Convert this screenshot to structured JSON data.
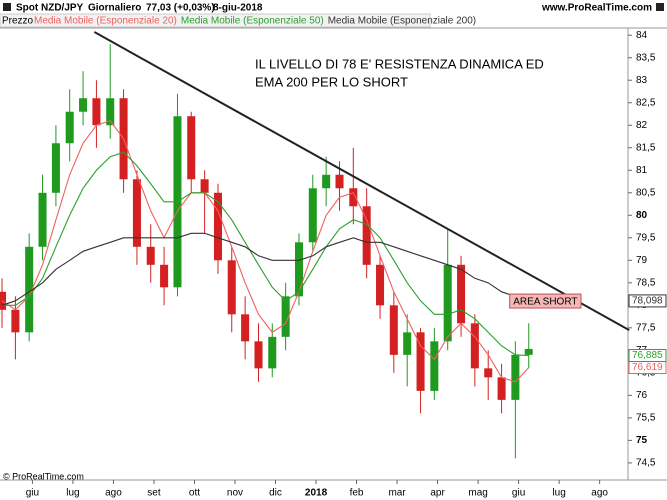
{
  "chart_data": {
    "type": "candlestick",
    "header": {
      "instrument": "Spot NZD/JPY",
      "period": "Giornaliero",
      "last": "77,03 (+0,03%)",
      "date": "8-giu-2018",
      "site": "www.ProRealTime.com"
    },
    "price_label": "Prezzo",
    "copyright": "© ProRealTime.com",
    "annotation": {
      "lines": [
        "IL LIVELLO DI 78 E' RESISTENZA DINAMICA ED",
        "EMA 200 PER LO SHORT"
      ]
    },
    "zone": {
      "label": "AREA SHORT",
      "x": [
        11.78,
        13.54
      ],
      "y": [
        77.94,
        78.25
      ],
      "color": "#f4b6b6"
    },
    "trendline": {
      "x": [
        1.53,
        14.73
      ],
      "y": [
        84.07,
        77.45
      ],
      "color": "#222222"
    },
    "x": [
      -0.75,
      -0.42,
      -0.08,
      0.25,
      0.58,
      0.92,
      1.25,
      1.58,
      1.92,
      2.25,
      2.58,
      2.92,
      3.25,
      3.58,
      3.92,
      4.25,
      4.58,
      4.92,
      5.25,
      5.58,
      5.92,
      6.25,
      6.58,
      6.92,
      7.25,
      7.58,
      7.92,
      8.25,
      8.58,
      8.92,
      9.25,
      9.58,
      9.92,
      10.25,
      10.58,
      10.92,
      11.25,
      11.58,
      11.92,
      12.25
    ],
    "candles": {
      "up_color": "#1f9a1f",
      "down_color": "#d42020",
      "open": [
        78.3,
        77.9,
        77.4,
        79.3,
        80.5,
        81.6,
        82.3,
        82.6,
        82.0,
        82.6,
        80.8,
        79.3,
        78.9,
        78.4,
        82.2,
        80.8,
        80.5,
        79.0,
        77.8,
        77.2,
        76.6,
        77.3,
        78.2,
        79.4,
        80.6,
        80.9,
        80.6,
        80.2,
        78.9,
        78.0,
        76.9,
        77.4,
        76.1,
        77.2,
        78.9,
        77.6,
        76.6,
        76.4,
        75.9,
        76.9
      ],
      "high": [
        78.6,
        78.2,
        79.6,
        80.9,
        82.0,
        82.8,
        83.2,
        83.0,
        83.8,
        82.8,
        81.0,
        79.8,
        79.3,
        82.7,
        82.3,
        81.0,
        80.7,
        79.3,
        78.2,
        77.6,
        77.6,
        78.5,
        79.6,
        80.9,
        81.3,
        81.2,
        81.5,
        80.6,
        79.1,
        78.3,
        77.8,
        77.5,
        77.5,
        79.7,
        79.1,
        77.8,
        77.0,
        76.7,
        77.2,
        77.6
      ],
      "low": [
        77.5,
        76.8,
        77.2,
        79.0,
        80.2,
        81.2,
        82.0,
        81.5,
        81.7,
        80.5,
        78.9,
        78.5,
        78.0,
        78.2,
        80.5,
        79.6,
        78.7,
        77.4,
        76.8,
        76.3,
        76.4,
        77.0,
        78.0,
        79.2,
        80.2,
        80.1,
        79.8,
        78.6,
        77.7,
        76.5,
        76.2,
        75.6,
        75.9,
        77.0,
        77.3,
        76.2,
        75.9,
        75.6,
        74.6,
        76.6
      ],
      "close": [
        77.9,
        77.4,
        79.3,
        80.5,
        81.6,
        82.3,
        82.6,
        82.0,
        82.6,
        80.8,
        79.3,
        78.9,
        78.4,
        82.2,
        80.8,
        80.5,
        79.0,
        77.8,
        77.2,
        76.6,
        77.3,
        78.2,
        79.4,
        80.6,
        80.9,
        80.6,
        80.2,
        78.9,
        78.0,
        76.9,
        77.4,
        76.1,
        77.2,
        78.9,
        77.6,
        76.6,
        76.4,
        75.9,
        76.9,
        77.03
      ]
    },
    "series": [
      {
        "name": "Media Mobile (Esponenziale 20)",
        "color": "#f06060",
        "last_label": {
          "value": 76.619,
          "label": "76,619"
        },
        "values": [
          78.1,
          77.9,
          78.2,
          78.9,
          79.9,
          80.9,
          81.6,
          82.0,
          82.1,
          81.7,
          80.9,
          80.1,
          79.5,
          80.1,
          80.5,
          80.5,
          80.1,
          79.3,
          78.5,
          77.8,
          77.4,
          77.6,
          78.3,
          79.2,
          80.0,
          80.4,
          80.5,
          79.9,
          79.1,
          78.3,
          77.7,
          77.1,
          76.8,
          77.3,
          77.6,
          77.3,
          76.9,
          76.4,
          76.3,
          76.619
        ]
      },
      {
        "name": "Media Mobile (Esponenziale 50)",
        "color": "#2ca02c",
        "last_label": {
          "value": 76.885,
          "label": "76,885"
        },
        "values": [
          78.0,
          78.0,
          78.2,
          78.6,
          79.3,
          80.0,
          80.6,
          81.0,
          81.3,
          81.4,
          81.1,
          80.7,
          80.3,
          80.3,
          80.5,
          80.5,
          80.3,
          79.9,
          79.4,
          78.9,
          78.4,
          78.1,
          78.3,
          78.8,
          79.3,
          79.7,
          79.9,
          79.8,
          79.5,
          79.0,
          78.5,
          78.1,
          77.8,
          77.8,
          77.9,
          77.7,
          77.4,
          77.1,
          76.9,
          76.885
        ]
      },
      {
        "name": "Media Mobile (Esponenziale 200)",
        "color": "#333333",
        "last_label": {
          "value": 78.098,
          "label": "78,098"
        },
        "values": [
          78.0,
          78.1,
          78.3,
          78.5,
          78.8,
          79.0,
          79.2,
          79.3,
          79.4,
          79.5,
          79.5,
          79.5,
          79.5,
          79.5,
          79.6,
          79.6,
          79.5,
          79.4,
          79.3,
          79.1,
          79.0,
          79.0,
          79.0,
          79.1,
          79.3,
          79.4,
          79.5,
          79.4,
          79.4,
          79.3,
          79.2,
          79.1,
          79.0,
          78.9,
          78.8,
          78.6,
          78.5,
          78.3,
          78.2,
          78.098
        ]
      }
    ],
    "xlim": [
      -0.8,
      14.7
    ],
    "xticks": [
      {
        "value": 0,
        "label": "giu"
      },
      {
        "value": 1,
        "label": "lug"
      },
      {
        "value": 2,
        "label": "ago"
      },
      {
        "value": 3,
        "label": "set"
      },
      {
        "value": 4,
        "label": "ott"
      },
      {
        "value": 5,
        "label": "nov"
      },
      {
        "value": 6,
        "label": "dic"
      },
      {
        "value": 7,
        "label": "2018"
      },
      {
        "value": 8,
        "label": "feb"
      },
      {
        "value": 9,
        "label": "mar"
      },
      {
        "value": 10,
        "label": "apr"
      },
      {
        "value": 11,
        "label": "mag"
      },
      {
        "value": 12,
        "label": "giu"
      },
      {
        "value": 13,
        "label": "lug"
      },
      {
        "value": 14,
        "label": "ago"
      }
    ],
    "ylim": [
      74.12,
      84.16
    ],
    "yticks": [
      {
        "value": 74.5,
        "label": "74,5"
      },
      75,
      {
        "value": 75.5,
        "label": "75,5"
      },
      76,
      {
        "value": 76.5,
        "label": "76,5"
      },
      77,
      {
        "value": 77.5,
        "label": "77,5"
      },
      78,
      {
        "value": 78.5,
        "label": "78,5"
      },
      79,
      {
        "value": 79.5,
        "label": "79,5"
      },
      80,
      {
        "value": 80.5,
        "label": "80,5"
      },
      81,
      {
        "value": 81.5,
        "label": "81,5"
      },
      82,
      {
        "value": 82.5,
        "label": "82,5"
      },
      83,
      {
        "value": 83.5,
        "label": "83,5"
      },
      84
    ]
  }
}
